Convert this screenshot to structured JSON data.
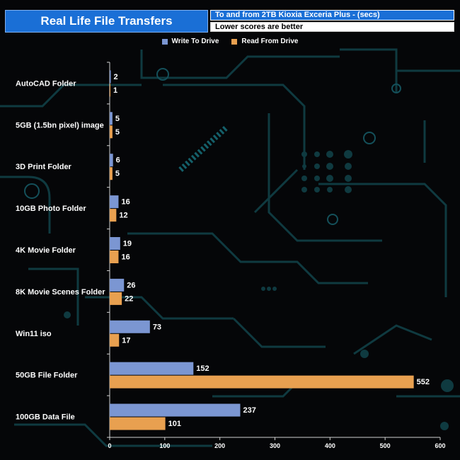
{
  "header": {
    "title": "Real Life File Transfers",
    "subtitle": "To and from 2TB Kioxia Exceria Plus - (secs)",
    "note": "Lower scores are better"
  },
  "colors": {
    "write": "#7b96d2",
    "read": "#e8a050",
    "axis": "#d0d0d0",
    "text": "#ffffff"
  },
  "chart_data": {
    "type": "bar",
    "orientation": "horizontal",
    "title": "Real Life File Transfers",
    "categories": [
      "AutoCAD Folder",
      "5GB (1.5bn pixel) image",
      "3D Print Folder",
      "10GB Photo Folder",
      "4K Movie Folder",
      "8K Movie Scenes Folder",
      "Win11 iso",
      "50GB File Folder",
      "100GB Data File"
    ],
    "series": [
      {
        "name": "Write To  Drive",
        "values": [
          2,
          5,
          6,
          16,
          19,
          26,
          73,
          152,
          237
        ]
      },
      {
        "name": "Read From  Drive",
        "values": [
          1,
          5,
          5,
          12,
          16,
          22,
          17,
          552,
          101
        ]
      }
    ],
    "xlim": [
      0,
      600
    ],
    "xticks": [
      0,
      100,
      200,
      300,
      400,
      500,
      600
    ],
    "legend": "top-center",
    "grid": false
  }
}
